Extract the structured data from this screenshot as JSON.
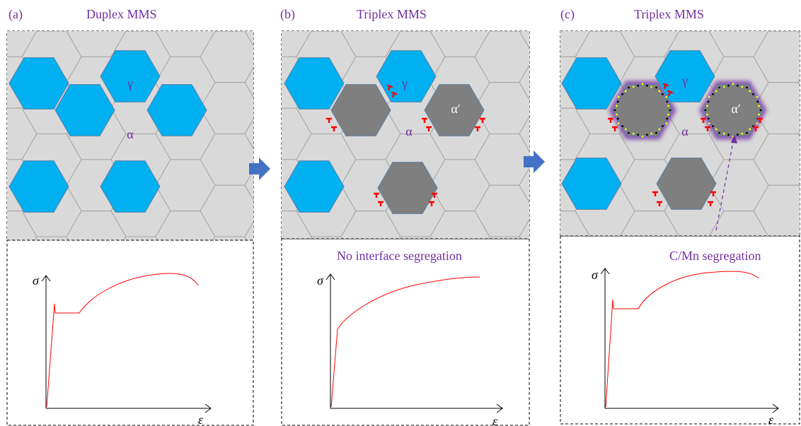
{
  "panels": [
    {
      "tag": "(a)",
      "title": "Duplex MMS",
      "note": ""
    },
    {
      "tag": "(b)",
      "title": "Triplex MMS",
      "note": "No interface segregation"
    },
    {
      "tag": "(c)",
      "title": "Triplex MMS",
      "note": "C/Mn segregation"
    }
  ],
  "phases": {
    "gamma": "γ",
    "alpha": "α",
    "alpha_prime": "α′"
  },
  "axes": {
    "stress": "σ",
    "strain": "ε"
  },
  "colors": {
    "title_purple": "#7030a0",
    "austenite": "#00b0f0",
    "martensite": "#7f7f7f",
    "ferrite": "#d9d9d9",
    "grain_border": "#a6a6a6",
    "dislocation": "#ff0000",
    "curve": "#ff0000",
    "arrow": "#4472c4",
    "segregation_glow": "#7030a0"
  },
  "legend_icons": [
    "dislocation-icon",
    "transition-arrow-icon"
  ]
}
